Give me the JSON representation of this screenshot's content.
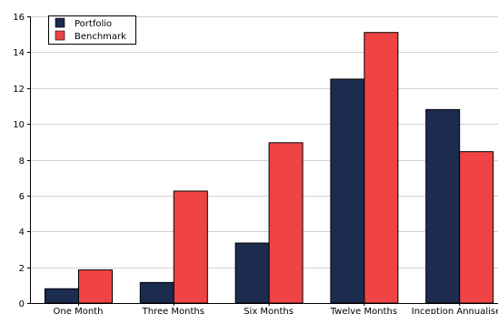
{
  "chart_data": {
    "type": "bar",
    "categories": [
      "One Month",
      "Three Months",
      "Six Months",
      "Twelve Months",
      "Inception Annualised"
    ],
    "series": [
      {
        "name": "Portfolio",
        "values": [
          0.8,
          1.15,
          3.35,
          12.5,
          10.8
        ],
        "color": "#1b2c4e"
      },
      {
        "name": "Benchmark",
        "values": [
          1.85,
          6.25,
          8.95,
          15.1,
          8.45
        ],
        "color": "#f04444"
      }
    ],
    "title": "",
    "xlabel": "",
    "ylabel": "",
    "ylim": [
      0,
      16
    ],
    "yticks": [
      0,
      2,
      4,
      6,
      8,
      10,
      12,
      14,
      16
    ],
    "grid": {
      "y": true,
      "color": "#d0d0d0"
    },
    "legend_position": "top-left"
  }
}
